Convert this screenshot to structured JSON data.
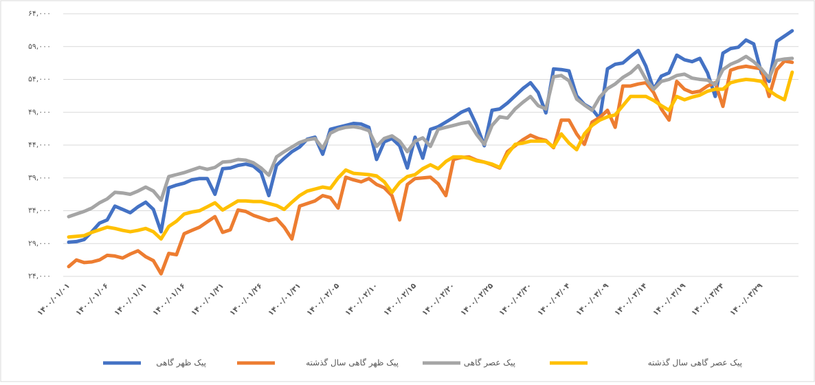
{
  "chart_data": {
    "type": "line",
    "categories": [
      "۱۴۰۰/۰۱/۰۱",
      null,
      null,
      null,
      null,
      "۱۴۰۰/۰۱/۰۶",
      null,
      null,
      null,
      null,
      "۱۴۰۰/۰۱/۱۱",
      null,
      null,
      null,
      null,
      "۱۴۰۰/۰۱/۱۶",
      null,
      null,
      null,
      null,
      "۱۴۰۰/۰۱/۲۱",
      null,
      null,
      null,
      null,
      "۱۴۰۰/۰۱/۲۶",
      null,
      null,
      null,
      null,
      "۱۴۰۰/۰۱/۳۱",
      null,
      null,
      null,
      null,
      "۱۴۰۰/۰۲/۰۵",
      null,
      null,
      null,
      null,
      "۱۴۰۰/۰۲/۱۰",
      null,
      null,
      null,
      null,
      "۱۴۰۰/۰۲/۱۵",
      null,
      null,
      null,
      null,
      "۱۴۰۰/۰۲/۲۰",
      null,
      null,
      null,
      null,
      "۱۴۰۰/۰۲/۲۵",
      null,
      null,
      null,
      null,
      "۱۴۰۰/۰۲/۳۰",
      null,
      null,
      null,
      null,
      "۱۴۰۰/۰۳/۰۴",
      null,
      null,
      null,
      null,
      "۱۴۰۰/۰۳/۰۹",
      null,
      null,
      null,
      null,
      "۱۴۰۰/۰۳/۱۴",
      null,
      null,
      null,
      null,
      "۱۴۰۰/۰۳/۱۹",
      null,
      null,
      null,
      null,
      "۱۴۰۰/۰۳/۲۴",
      null,
      null,
      null,
      null,
      "۱۴۰۰/۰۳/۲۹",
      null,
      null,
      null,
      null
    ],
    "series": [
      {
        "name": "پیک ظهر گاهی",
        "color": "#4472c4",
        "values": [
          29200,
          29300,
          29600,
          30800,
          32100,
          32600,
          34700,
          34200,
          33700,
          34600,
          35300,
          34200,
          30800,
          37500,
          37900,
          38200,
          38700,
          38900,
          38900,
          36500,
          40400,
          40500,
          40900,
          41100,
          40800,
          39800,
          36300,
          40900,
          42000,
          43000,
          43700,
          44900,
          45200,
          42600,
          46400,
          46700,
          47000,
          47300,
          47200,
          46700,
          41800,
          44500,
          45000,
          43900,
          40500,
          45200,
          42000,
          46400,
          46800,
          47500,
          48200,
          49000,
          49500,
          47000,
          43900,
          49300,
          49500,
          50400,
          51500,
          52600,
          53500,
          52000,
          48900,
          55600,
          55500,
          55300,
          51500,
          50200,
          49500,
          48000,
          55600,
          56300,
          56500,
          57500,
          58400,
          56000,
          52500,
          54500,
          55000,
          57700,
          57000,
          56700,
          57200,
          55000,
          51400,
          58000,
          58700,
          58900,
          60000,
          59400,
          55000,
          53700,
          59800,
          60600,
          61400
        ]
      },
      {
        "name": "پیک ظهر گاهی سال گذشته",
        "color": "#ed7d31",
        "values": [
          25500,
          26500,
          26100,
          26200,
          26500,
          27200,
          27100,
          26800,
          27400,
          27900,
          27000,
          26400,
          24400,
          27500,
          27300,
          30500,
          31000,
          31500,
          32300,
          33100,
          30700,
          31100,
          34100,
          33900,
          33300,
          32900,
          32500,
          32800,
          31500,
          29700,
          34700,
          35100,
          35500,
          36300,
          36000,
          34400,
          39100,
          38700,
          38400,
          38900,
          38000,
          37500,
          36300,
          32600,
          38000,
          38900,
          39000,
          39100,
          38100,
          36300,
          41800,
          42100,
          42200,
          41700,
          41400,
          41000,
          40500,
          43000,
          43900,
          44800,
          45500,
          45000,
          44700,
          43600,
          47800,
          47800,
          45700,
          44100,
          47500,
          48200,
          49300,
          46700,
          53000,
          53000,
          53300,
          53500,
          52000,
          49500,
          47800,
          53700,
          52500,
          52000,
          52200,
          53000,
          53500,
          49900,
          55400,
          55800,
          56000,
          55800,
          55600,
          51400,
          55500,
          56800,
          56600
        ]
      },
      {
        "name": "پیک عصر گاهی",
        "color": "#a5a5a5",
        "values": [
          33100,
          33500,
          33900,
          34400,
          35200,
          35800,
          36800,
          36700,
          36500,
          37000,
          37600,
          37000,
          35600,
          39200,
          39500,
          39800,
          40200,
          40600,
          40300,
          40600,
          41400,
          41500,
          41800,
          41700,
          41300,
          40500,
          39400,
          42200,
          43000,
          43700,
          44400,
          44800,
          45000,
          43500,
          45800,
          46400,
          46700,
          46800,
          46600,
          46200,
          43800,
          45000,
          45400,
          44600,
          43000,
          44600,
          45100,
          43800,
          46400,
          46700,
          47000,
          47300,
          47500,
          45600,
          44100,
          47000,
          48300,
          48100,
          49500,
          50500,
          51400,
          50000,
          49500,
          54400,
          54600,
          53800,
          51000,
          50100,
          49300,
          51300,
          52600,
          53300,
          54300,
          55000,
          56100,
          54000,
          52500,
          53700,
          54000,
          54600,
          54800,
          54200,
          54000,
          53900,
          53200,
          55500,
          56300,
          56800,
          57500,
          56700,
          55600,
          54200,
          56900,
          57100,
          57200
        ]
      },
      {
        "name": "پیک عصر گاهی سال گذشته",
        "color": "#ffc000",
        "values": [
          30000,
          30100,
          30200,
          30700,
          31100,
          31500,
          31300,
          31000,
          30800,
          31000,
          31300,
          30800,
          29700,
          31600,
          32400,
          33500,
          33800,
          34000,
          34600,
          35200,
          34100,
          34800,
          35500,
          35500,
          35400,
          35400,
          35100,
          34800,
          34200,
          35300,
          36300,
          37000,
          37300,
          37600,
          37400,
          39000,
          40200,
          39700,
          39600,
          39500,
          39300,
          38400,
          36800,
          38300,
          39200,
          39500,
          40400,
          41000,
          40400,
          41500,
          42200,
          42200,
          42000,
          41600,
          41400,
          41100,
          40600,
          42600,
          44100,
          44300,
          44600,
          44600,
          44600,
          43700,
          45700,
          44300,
          43300,
          45700,
          47000,
          47800,
          48300,
          48600,
          50000,
          51400,
          51400,
          51400,
          50800,
          50000,
          49300,
          51400,
          50900,
          51300,
          51600,
          52200,
          52500,
          52500,
          53500,
          53800,
          54000,
          53900,
          53700,
          52300,
          51500,
          50900,
          55100
        ]
      }
    ],
    "ylim": [
      24000,
      64000
    ],
    "yticks": [
      {
        "value": 24000,
        "label": "۲۴,۰۰۰"
      },
      {
        "value": 29000,
        "label": "۲۹,۰۰۰"
      },
      {
        "value": 34000,
        "label": "۳۴,۰۰۰"
      },
      {
        "value": 39000,
        "label": "۳۹,۰۰۰"
      },
      {
        "value": 44000,
        "label": "۴۴,۰۰۰"
      },
      {
        "value": 49000,
        "label": "۴۹,۰۰۰"
      },
      {
        "value": 54000,
        "label": "۵۴,۰۰۰"
      },
      {
        "value": 59000,
        "label": "۵۹,۰۰۰"
      },
      {
        "value": 64000,
        "label": "۶۴,۰۰۰"
      }
    ],
    "grid": true,
    "legend": "bottom"
  }
}
